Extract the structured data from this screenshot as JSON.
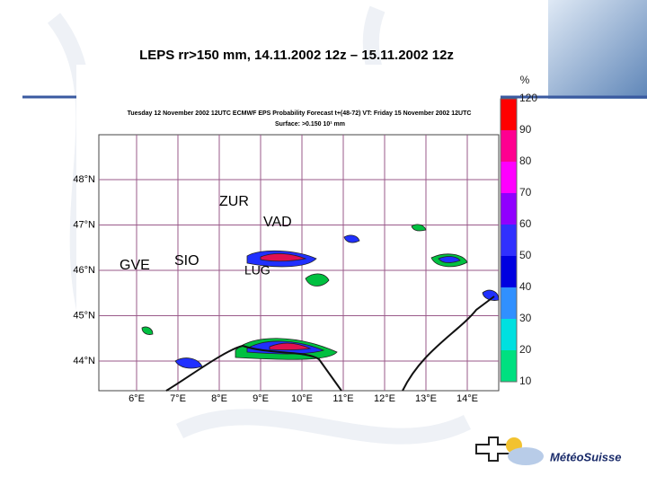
{
  "title": "LEPS rr>150 mm, 14.11.2002 12z – 15.11.2002 12z",
  "map": {
    "header": [
      "Tuesday 12 November 2002 12UTC ECMWF  EPS Probability Forecast t+(48-72) VT: Friday 15 November 2002 12UTC",
      "Surface:  >0.150 10¹ mm"
    ],
    "latitudes": [
      "48°N",
      "47°N",
      "46°N",
      "45°N",
      "44°N"
    ],
    "longitudes": [
      "6°E",
      "7°E",
      "8°E",
      "9°E",
      "10°E",
      "11°E",
      "12°E",
      "13°E",
      "14°E"
    ],
    "places": [
      "ZUR",
      "VAD",
      "GVE",
      "SIO",
      "LUG"
    ]
  },
  "colorbar": {
    "unit": "%",
    "ticks": [
      "120",
      "90",
      "80",
      "70",
      "60",
      "50",
      "40",
      "30",
      "20",
      "10"
    ]
  },
  "logo": "MétéoSuisse"
}
